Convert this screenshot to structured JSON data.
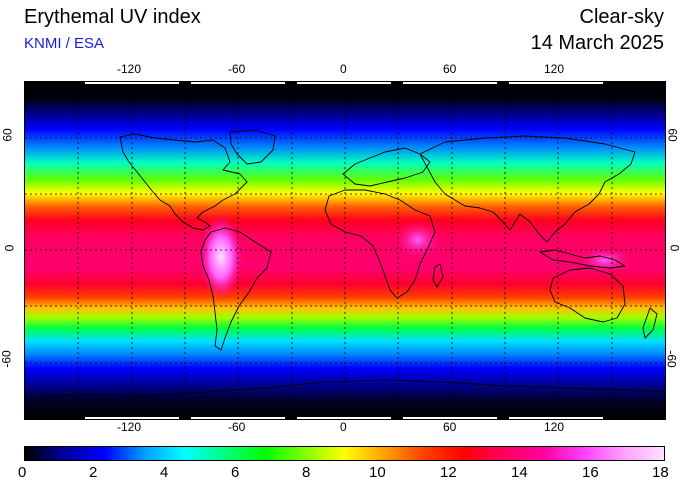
{
  "header": {
    "title": "Erythemal UV index",
    "credit": "KNMI / ESA",
    "condition": "Clear-sky",
    "date": "14 March 2025"
  },
  "map": {
    "lon_ticks": [
      "-120",
      "-60",
      "0",
      "60",
      "120"
    ],
    "lat_ticks": [
      "60",
      "0",
      "-60"
    ],
    "lon_values": [
      -120,
      -60,
      0,
      60,
      120
    ],
    "lat_values": [
      60,
      0,
      -60
    ],
    "gridlines_lon": [
      -150,
      -120,
      -90,
      -60,
      -30,
      0,
      30,
      60,
      90,
      120,
      150
    ],
    "gridlines_lat": [
      60,
      30,
      0,
      -30,
      -60
    ],
    "lon_range": [
      -180,
      180
    ],
    "lat_range": [
      -90,
      90
    ]
  },
  "colorbar": {
    "labels": [
      "0",
      "2",
      "4",
      "6",
      "8",
      "10",
      "12",
      "14",
      "16",
      "18"
    ],
    "range": [
      0,
      18
    ],
    "colors": [
      "#000000",
      "#0000a0",
      "#0000ff",
      "#00a0ff",
      "#00ffff",
      "#00ff80",
      "#00ff00",
      "#80ff00",
      "#ffff00",
      "#ffa000",
      "#ff4000",
      "#ff0000",
      "#ff0060",
      "#ff00a0",
      "#ff40ff",
      "#ffa0ff",
      "#ffe0ff"
    ]
  }
}
